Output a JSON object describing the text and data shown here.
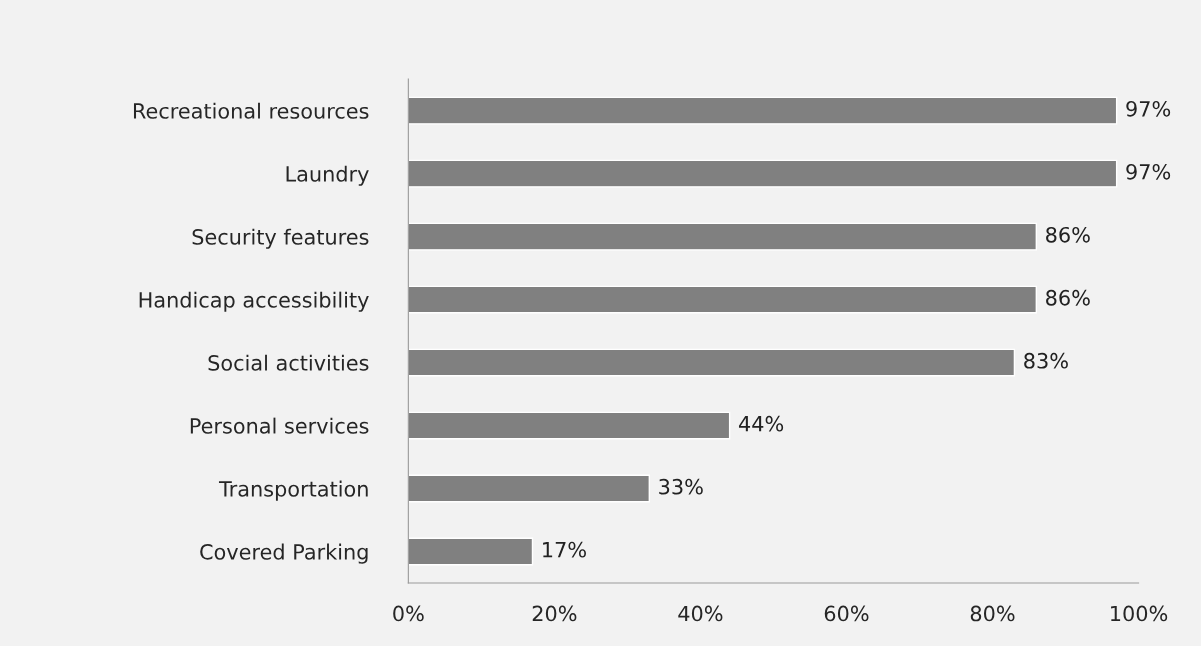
{
  "chart_data": {
    "type": "bar",
    "orientation": "horizontal",
    "categories": [
      "Recreational resources",
      "Laundry",
      "Security features",
      "Handicap accessibility",
      "Social activities",
      "Personal services",
      "Transportation",
      "Covered Parking"
    ],
    "values": [
      97,
      97,
      86,
      86,
      83,
      44,
      33,
      17
    ],
    "value_labels": [
      "97%",
      "97%",
      "86%",
      "86%",
      "83%",
      "44%",
      "33%",
      "17%"
    ],
    "color": "#808080",
    "xlim": [
      0,
      100
    ],
    "xticks": [
      {
        "value": 0,
        "label": "0%"
      },
      {
        "value": 20,
        "label": "20%"
      },
      {
        "value": 40,
        "label": "40%"
      },
      {
        "value": 60,
        "label": "60%"
      },
      {
        "value": 80,
        "label": "80%"
      },
      {
        "value": 100,
        "label": "100%"
      }
    ],
    "grid": false,
    "legend": false
  }
}
